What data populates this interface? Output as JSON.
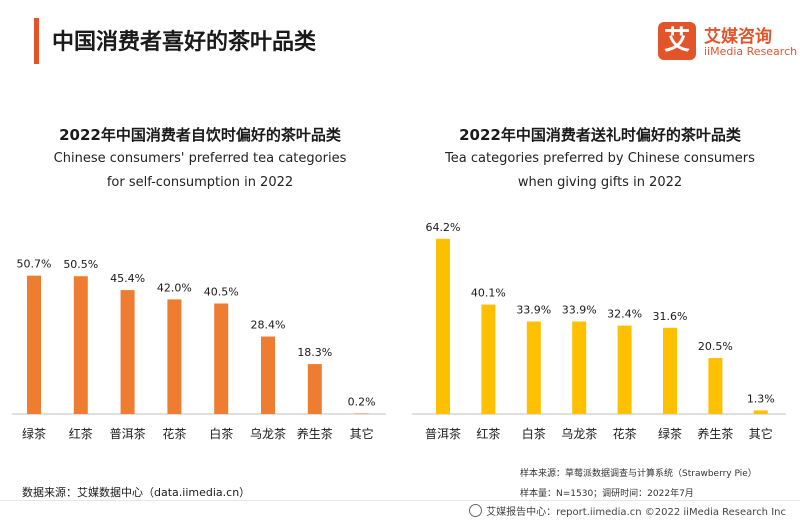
{
  "header": {
    "title": "中国消费者喜好的茶叶品类",
    "logo_badge": "艾",
    "logo_cn": "艾媒咨询",
    "logo_en": "iiMedia Research"
  },
  "colors": {
    "accent": "#e2552b",
    "left_bars": "#ee7d31",
    "right_bars": "#ffc000"
  },
  "chart_data": [
    {
      "type": "bar",
      "title": "2022年中国消费者自饮时偏好的茶叶品类",
      "subtitle_line1": "Chinese consumers' preferred tea categories",
      "subtitle_line2": "for self-consumption in 2022",
      "categories": [
        "绿茶",
        "红茶",
        "普洱茶",
        "花茶",
        "白茶",
        "乌龙茶",
        "养生茶",
        "其它"
      ],
      "values": [
        50.7,
        50.5,
        45.4,
        42.0,
        40.5,
        28.4,
        18.3,
        0.2
      ],
      "labels": [
        "50.7%",
        "50.5%",
        "45.4%",
        "42.0%",
        "40.5%",
        "28.4%",
        "18.3%",
        "0.2%"
      ],
      "ylim": [
        0,
        70
      ],
      "color": "#ee7d31",
      "grid": false,
      "legend": "none"
    },
    {
      "type": "bar",
      "title": "2022年中国消费者送礼时偏好的茶叶品类",
      "subtitle_line1": "Tea categories preferred by Chinese consumers",
      "subtitle_line2": "when giving gifts in 2022",
      "categories": [
        "普洱茶",
        "红茶",
        "白茶",
        "乌龙茶",
        "花茶",
        "绿茶",
        "养生茶",
        "其它"
      ],
      "values": [
        64.2,
        40.1,
        33.9,
        33.9,
        32.4,
        31.6,
        20.5,
        1.3
      ],
      "labels": [
        "64.2%",
        "40.1%",
        "33.9%",
        "33.9%",
        "32.4%",
        "31.6%",
        "20.5%",
        "1.3%"
      ],
      "ylim": [
        0,
        70
      ],
      "color": "#ffc000",
      "grid": false,
      "legend": "none"
    }
  ],
  "footer": {
    "source_left": "数据来源：艾媒数据中心（data.iimedia.cn）",
    "sample_source": "样本来源：草莓派数据调查与计算系统（Strawberry Pie）",
    "sample_size": "样本量：N=1530；调研时间：2022年7月",
    "report_center": "艾媒报告中心：report.iimedia.cn  ©2022  iiMedia Research  Inc"
  }
}
